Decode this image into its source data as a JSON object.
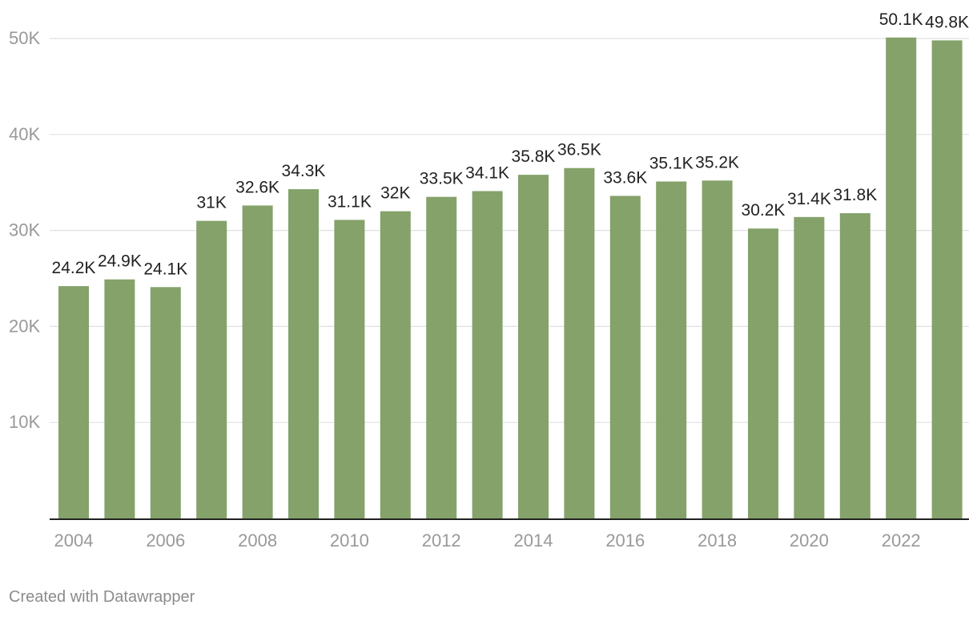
{
  "chart_data": {
    "type": "bar",
    "title": "",
    "xlabel": "",
    "ylabel": "",
    "categories": [
      "2004",
      "2005",
      "2006",
      "2007",
      "2008",
      "2009",
      "2010",
      "2011",
      "2012",
      "2013",
      "2014",
      "2015",
      "2016",
      "2017",
      "2018",
      "2019",
      "2020",
      "2021",
      "2022",
      "2023"
    ],
    "values": [
      24200,
      24900,
      24100,
      31000,
      32600,
      34300,
      31100,
      32000,
      33500,
      34100,
      35800,
      36500,
      33600,
      35100,
      35200,
      30200,
      31400,
      31800,
      50100,
      49800
    ],
    "value_labels": [
      "24.2K",
      "24.9K",
      "24.1K",
      "31K",
      "32.6K",
      "34.3K",
      "31.1K",
      "32K",
      "33.5K",
      "34.1K",
      "35.8K",
      "36.5K",
      "33.6K",
      "35.1K",
      "35.2K",
      "30.2K",
      "31.4K",
      "31.8K",
      "50.1K",
      "49.8K"
    ],
    "x_tick_labels": [
      "2004",
      "2006",
      "2008",
      "2010",
      "2012",
      "2014",
      "2016",
      "2018",
      "2020",
      "2022"
    ],
    "y_ticks": [
      10000,
      20000,
      30000,
      40000,
      50000
    ],
    "y_tick_labels": [
      "10K",
      "20K",
      "30K",
      "40K",
      "50K"
    ],
    "ylim": [
      0,
      50000
    ],
    "grid": true,
    "colors": {
      "bar": "#84a26a",
      "grid": "#e0e0e0",
      "axis": "#222222",
      "tick_text": "#999999",
      "label_text": "#222222"
    }
  },
  "footer": {
    "credit": "Created with Datawrapper"
  }
}
